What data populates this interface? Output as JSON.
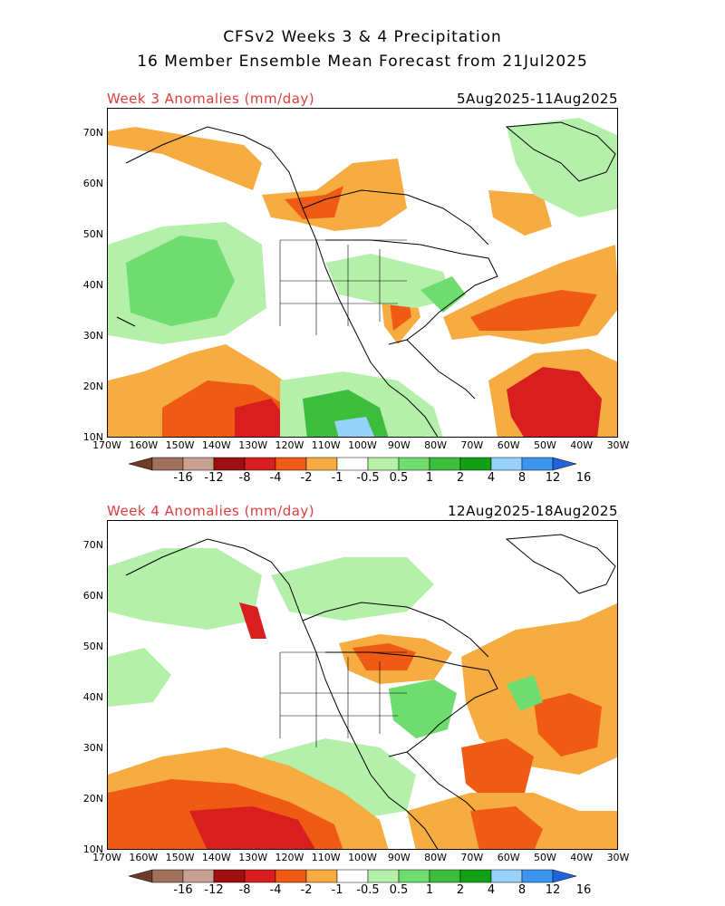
{
  "header": {
    "line1": "CFSv2 Weeks 3 & 4 Precipitation",
    "line2": "16 Member Ensemble Mean Forecast from 21Jul2025"
  },
  "panels": [
    {
      "title": "Week 3 Anomalies (mm/day)",
      "dates": "5Aug2025-11Aug2025"
    },
    {
      "title": "Week 4 Anomalies (mm/day)",
      "dates": "12Aug2025-18Aug2025"
    }
  ],
  "axes": {
    "lat_labels": [
      "70N",
      "60N",
      "50N",
      "40N",
      "30N",
      "20N",
      "10N"
    ],
    "lon_labels": [
      "170W",
      "160W",
      "150W",
      "140W",
      "130W",
      "120W",
      "110W",
      "100W",
      "90W",
      "80W",
      "70W",
      "60W",
      "50W",
      "40W",
      "30W"
    ]
  },
  "colorbar": {
    "labels": [
      "-16",
      "-12",
      "-8",
      "-4",
      "-2",
      "-1",
      "-0.5",
      "0.5",
      "1",
      "2",
      "4",
      "8",
      "12",
      "16"
    ],
    "colors": [
      "#a0705a",
      "#c8a090",
      "#a01010",
      "#d81e1e",
      "#ef5a14",
      "#f6ac40",
      "#ffffff",
      "#b4f0aa",
      "#6edc6e",
      "#3cbe3c",
      "#14a014",
      "#96d2fa",
      "#3c96f0"
    ],
    "left_arrow_color": "#6e3c28",
    "right_arrow_color": "#1e64dc"
  },
  "colors": {
    "title_red": "#e03c3c",
    "dry_light": "#f6ac40",
    "dry_mid": "#ef5a14",
    "dry_strong": "#d81e1e",
    "wet_light": "#b4f0aa",
    "wet_mid": "#6edc6e",
    "wet_strong": "#3cbe3c",
    "wet_blue": "#96d2fa"
  }
}
